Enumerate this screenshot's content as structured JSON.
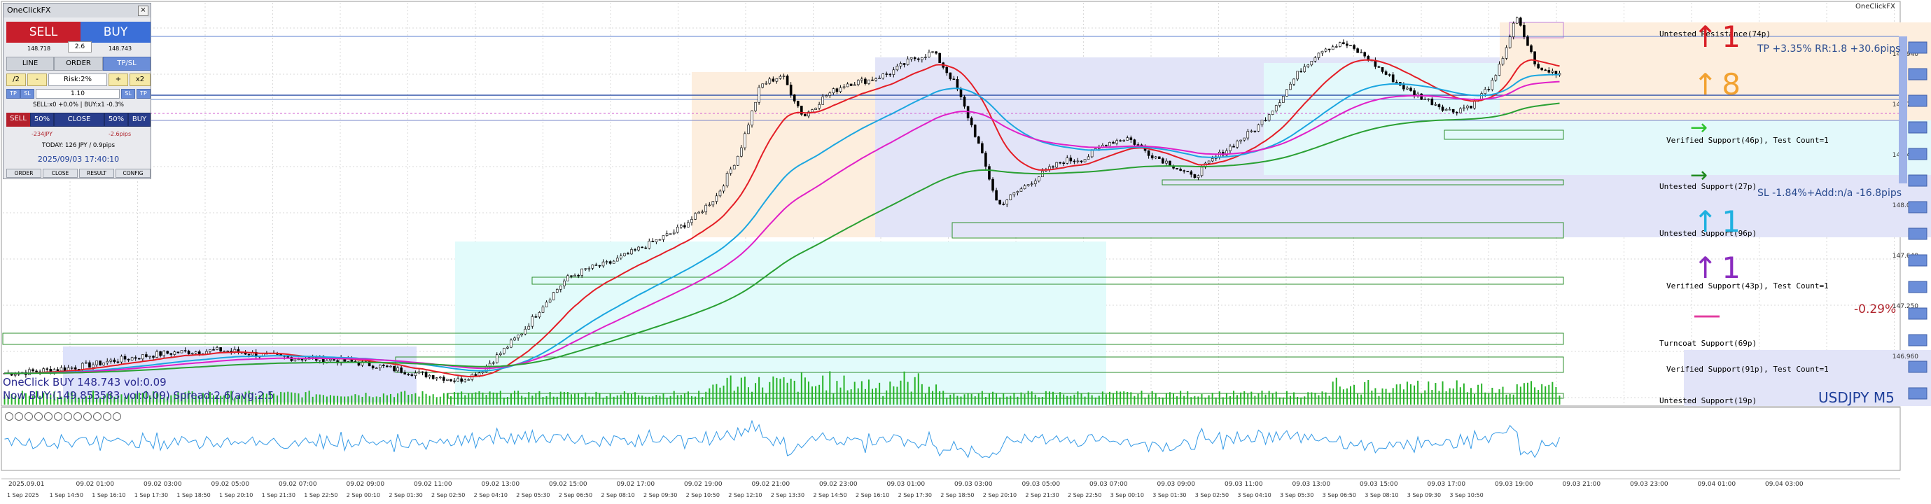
{
  "window": {
    "title": "OneClickFX",
    "symbol_label": "USDJPY M5",
    "top_right_label": "OneClickFX"
  },
  "panel": {
    "title": "OneClickFX",
    "sell_label": "SELL",
    "buy_label": "BUY",
    "spread": "2.6",
    "bid": "148.718",
    "ask": "148.743",
    "mode_line": "LINE",
    "mode_order": "ORDER",
    "mode_tpsl": "TP/SL",
    "half": "/2",
    "minus": "-",
    "risk": "Risk:2%",
    "plus": "+",
    "double": "x2",
    "tp_left": "TP",
    "sl_left": "SL",
    "lots": "1.10",
    "sl_right": "SL",
    "tp_right": "TP",
    "positions": "SELL:x0 +0.0%  |  BUY:x1 -0.3%",
    "row_sell": "SELL",
    "row_50a": "50%",
    "row_close": "CLOSE",
    "row_50b": "50%",
    "row_buy": "BUY",
    "pl_left": "-234JPY",
    "pl_right": "-2.6pips",
    "today": "TODAY: 126 JPY / 0.9pips",
    "datetime": "2025/09/03  17:40:10",
    "footer": [
      "ORDER",
      "CLOSE",
      "RESULT",
      "CONFIG"
    ]
  },
  "overlay": {
    "line1": "OneClick BUY 148.743 vol:0.09",
    "line2": "Now BUY:(149.853583 vol:0.09) Spread:2.6(avg:2.5"
  },
  "zones": [
    {
      "name": "resistance",
      "label": "Untested Resistance(74p)"
    },
    {
      "name": "support-46",
      "label": "Verified Support(46p), Test Count=1"
    },
    {
      "name": "support-27",
      "label": "Untested Support(27p)"
    },
    {
      "name": "support-96",
      "label": "Untested Support(96p)"
    },
    {
      "name": "support-43",
      "label": "Verified Support(43p), Test Count=1"
    },
    {
      "name": "turncoat-69",
      "label": "Turncoat Support(69p)"
    },
    {
      "name": "support-91",
      "label": "Verified Support(91p), Test Count=1"
    },
    {
      "name": "support-19",
      "label": "Untested Support(19p)"
    }
  ],
  "signals": [
    {
      "arrow": "↑",
      "value": "1",
      "color": "#d81f26"
    },
    {
      "arrow": "↑",
      "value": "8",
      "color": "#f2a231"
    },
    {
      "arrow": "→",
      "value": "",
      "color": "#2fc42f"
    },
    {
      "arrow": "→",
      "value": "",
      "color": "#1f8a1f"
    },
    {
      "arrow": "↑",
      "value": "1",
      "color": "#1fb1e0"
    },
    {
      "arrow": "↑",
      "value": "1",
      "color": "#8a2bbf"
    },
    {
      "arrow": "—",
      "value": "",
      "color": "#e33a9e"
    }
  ],
  "trade": {
    "tp_text": "TP +3.35% RR:1.8 +30.6pips",
    "sl_text": "SL -1.84%+Add:n/a -16.8pips",
    "pct_text": "-0.29%"
  },
  "colors": {
    "ema_red": "#e41e26",
    "ema_blue": "#1ba6e0",
    "ema_magenta": "#e020c8",
    "ema_green": "#2aa033",
    "volume": "#27b327",
    "rsi": "#3399e6"
  },
  "price_axis": {
    "labels": [
      "148.940",
      "148.750",
      "148.440",
      "148.010",
      "147.640",
      "147.250",
      "146.960"
    ]
  },
  "time_axis": {
    "upper": [
      "2025.09.01",
      "09.02 01:00",
      "09.02 03:00",
      "09.02 05:00",
      "09.02 07:00",
      "09.02 09:00",
      "09.02 11:00",
      "09.02 13:00",
      "09.02 15:00",
      "09.02 17:00",
      "09.02 19:00",
      "09.02 21:00",
      "09.02 23:00",
      "09.03 01:00",
      "09.03 03:00",
      "09.03 05:00",
      "09.03 07:00",
      "09.03 09:00",
      "09.03 11:00",
      "09.03 13:00",
      "09.03 15:00",
      "09.03 17:00",
      "09.03 19:00",
      "09.03 21:00",
      "09.03 23:00",
      "09.04 01:00",
      "09.04 03:00"
    ],
    "lower": [
      "1 Sep 2025",
      "1 Sep 14:50",
      "1 Sep 16:10",
      "1 Sep 17:30",
      "1 Sep 18:50",
      "1 Sep 20:10",
      "1 Sep 21:30",
      "1 Sep 22:50",
      "2 Sep 00:10",
      "2 Sep 01:30",
      "2 Sep 02:50",
      "2 Sep 04:10",
      "2 Sep 05:30",
      "2 Sep 06:50",
      "2 Sep 08:10",
      "2 Sep 09:30",
      "2 Sep 10:50",
      "2 Sep 12:10",
      "2 Sep 13:30",
      "2 Sep 14:50",
      "2 Sep 16:10",
      "2 Sep 17:30",
      "2 Sep 18:50",
      "2 Sep 20:10",
      "2 Sep 21:30",
      "2 Sep 22:50",
      "3 Sep 00:10",
      "3 Sep 01:30",
      "3 Sep 02:50",
      "3 Sep 04:10",
      "3 Sep 05:30",
      "3 Sep 06:50",
      "3 Sep 08:10",
      "3 Sep 09:30",
      "3 Sep 10:50"
    ]
  },
  "chart_data": {
    "type": "line",
    "series": [
      {
        "name": "",
        "values": [
          146.85,
          146.86,
          146.88,
          146.9,
          146.93,
          146.97,
          147.0,
          147.03,
          147.05,
          147.06,
          147.07,
          147.05,
          147.02,
          147.0,
          146.99,
          146.98,
          146.96,
          146.93,
          146.89,
          146.85,
          146.82,
          146.78,
          146.86,
          147.05,
          147.25,
          147.52,
          147.75,
          147.85,
          147.9,
          148.0,
          148.1,
          148.2,
          148.35,
          148.55,
          148.95,
          149.6,
          149.7,
          149.3,
          149.5,
          149.62,
          149.65,
          149.72,
          149.85,
          149.92,
          149.62,
          149.1,
          148.45,
          148.6,
          148.75,
          148.88,
          148.9,
          149.05,
          149.1,
          148.95,
          148.85,
          148.72,
          148.9,
          149.05,
          149.2,
          149.45,
          149.75,
          149.95,
          150.0,
          149.88,
          149.7,
          149.55,
          149.45,
          149.35,
          149.42,
          149.65,
          150.25,
          149.75,
          149.72
        ]
      }
    ]
  }
}
